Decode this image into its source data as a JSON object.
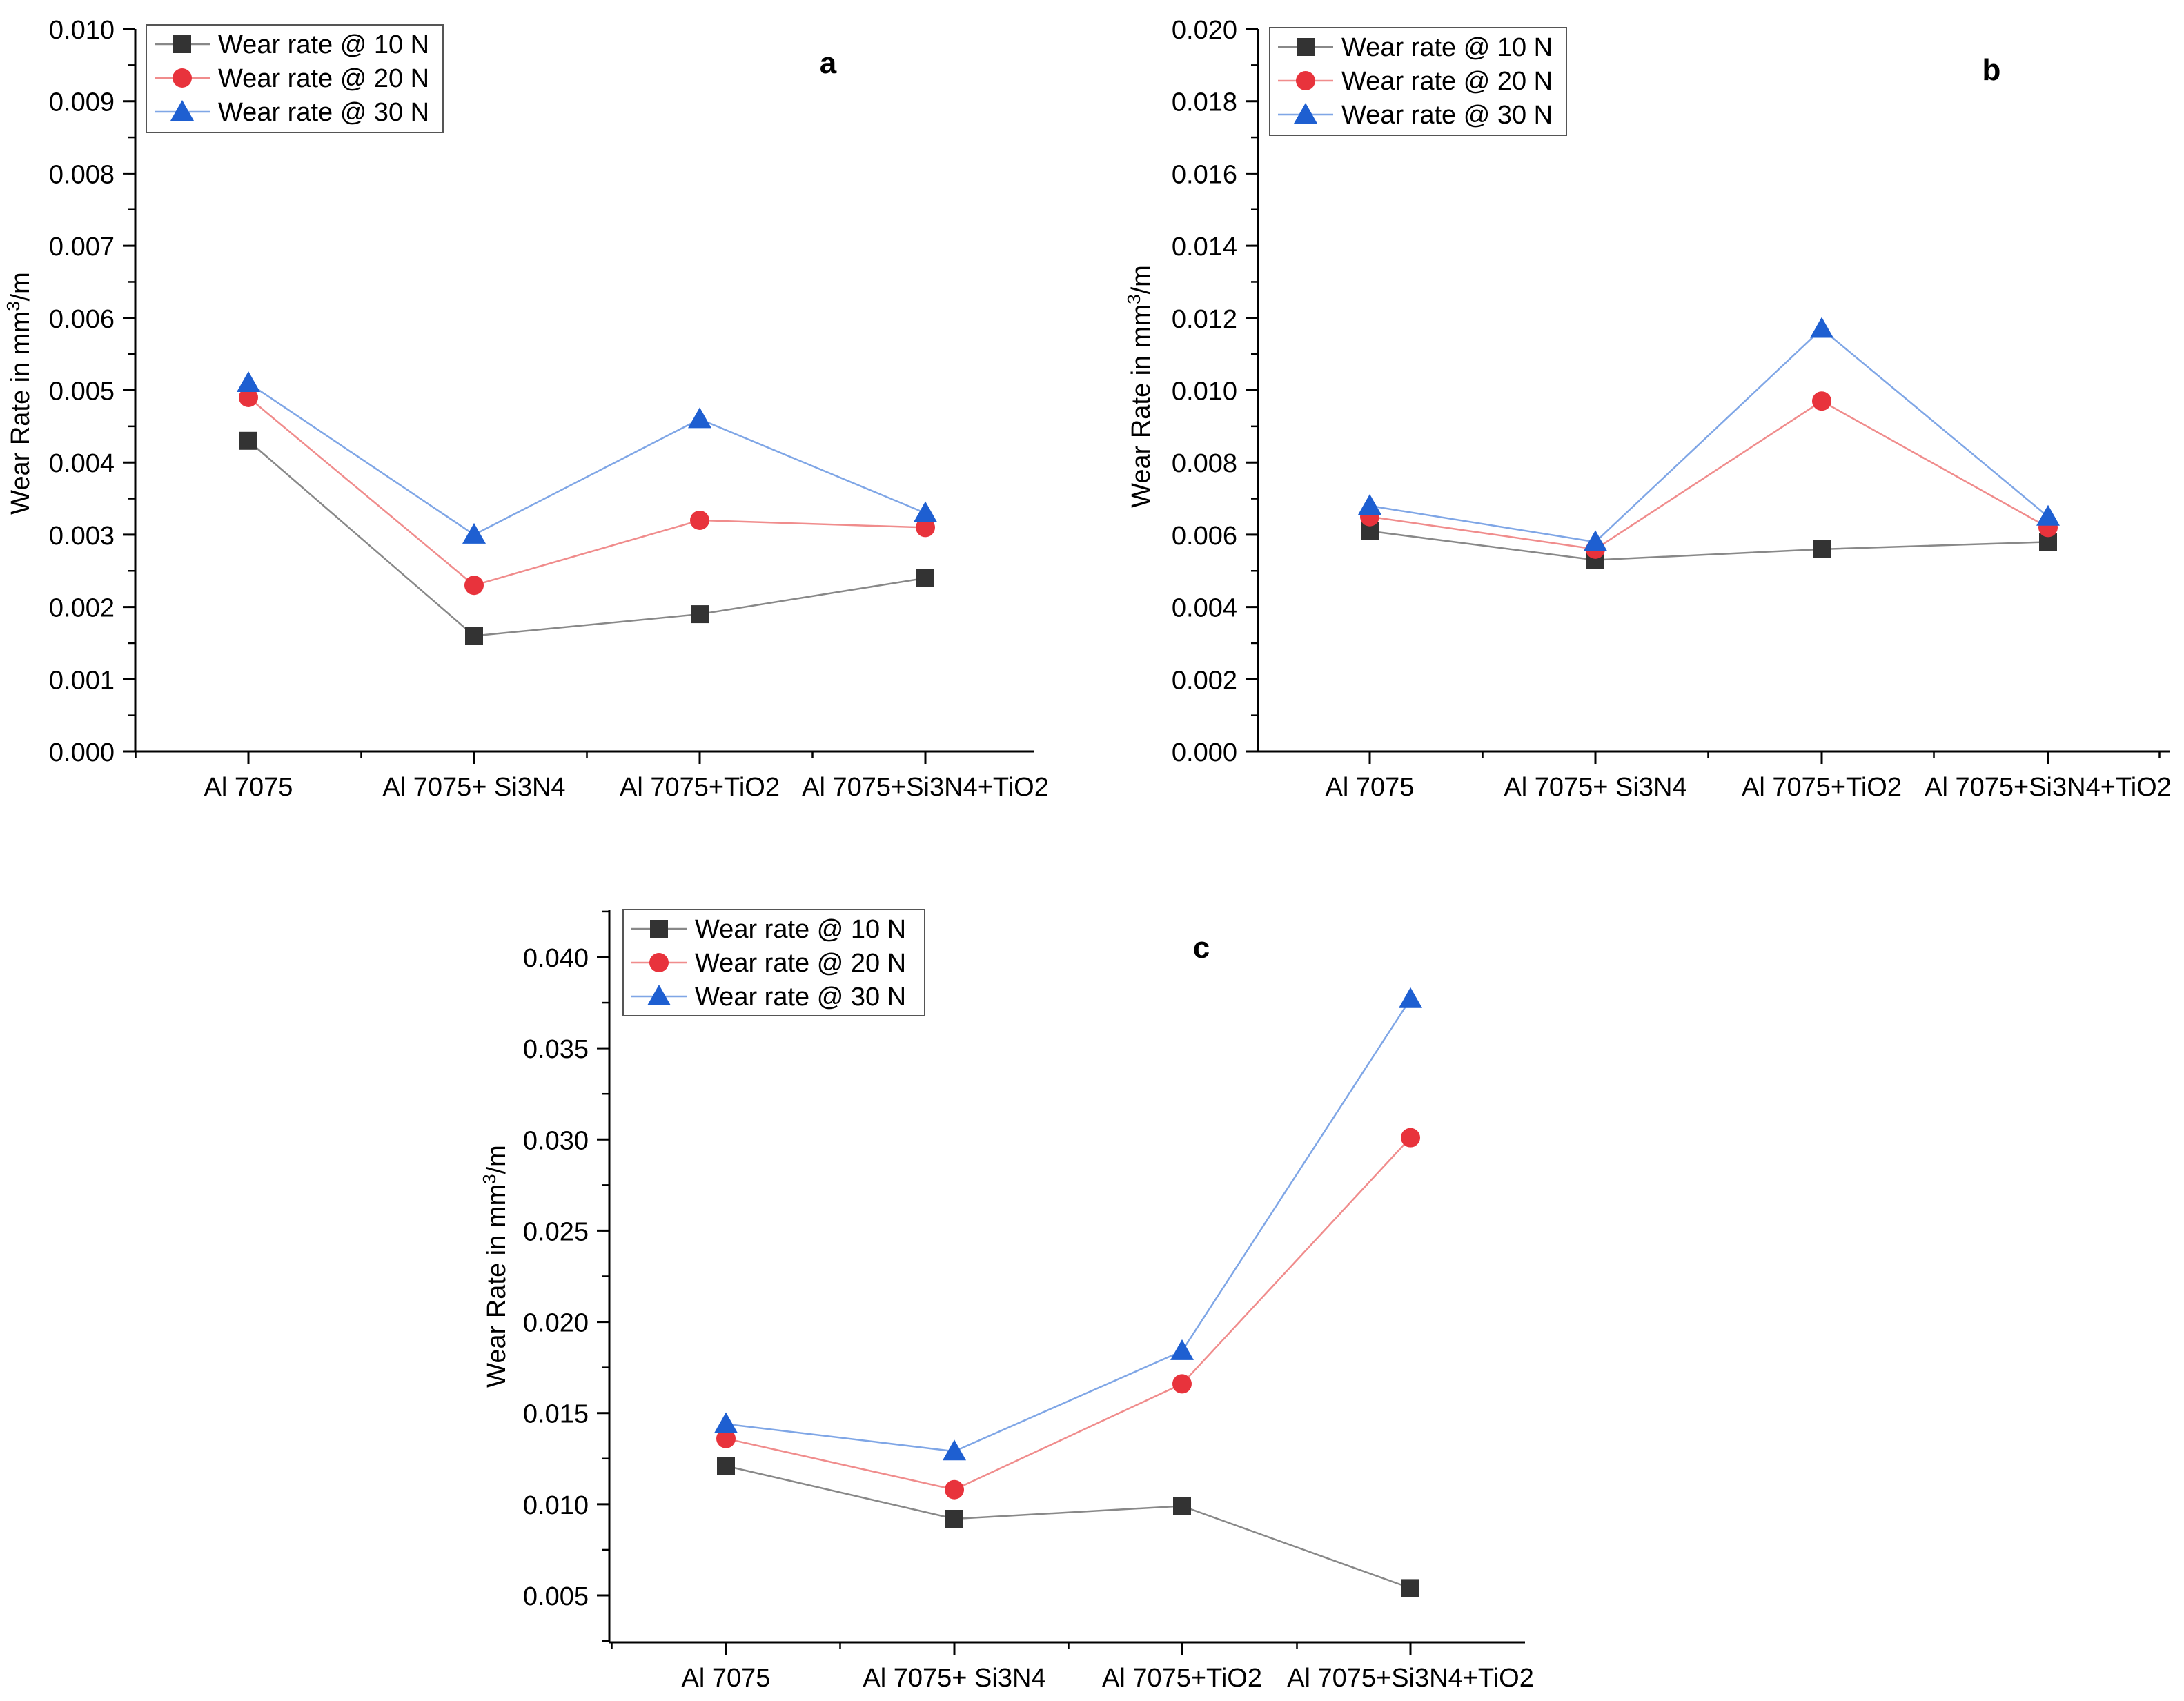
{
  "chart_data": [
    {
      "type": "line",
      "panel_label": "a",
      "categories": [
        "Al 7075",
        "Al 7075+ Si3N4",
        "Al 7075+TiO2",
        "Al 7075+Si3N4+TiO2"
      ],
      "ylabel": "Wear Rate in mm",
      "ylabel_sup": "3",
      "ylabel_tail": "/m",
      "ylim": [
        0,
        0.01
      ],
      "yticks": [
        "0.000",
        "0.001",
        "0.002",
        "0.003",
        "0.004",
        "0.005",
        "0.006",
        "0.007",
        "0.008",
        "0.009",
        "0.010"
      ],
      "legend_position": "top-left",
      "series": [
        {
          "name": "Wear rate @ 10 N",
          "marker": "square",
          "color": "#333333",
          "line_color": "#888888",
          "values": [
            0.0043,
            0.0016,
            0.0019,
            0.0024
          ]
        },
        {
          "name": "Wear rate @ 20 N",
          "marker": "circle",
          "color": "#e8333c",
          "line_color": "#f08c8c",
          "values": [
            0.0049,
            0.0023,
            0.0032,
            0.0031
          ]
        },
        {
          "name": "Wear rate @ 30 N",
          "marker": "triangle",
          "color": "#1e5fd1",
          "line_color": "#7fa6e6",
          "values": [
            0.0051,
            0.003,
            0.0046,
            0.0033
          ]
        }
      ]
    },
    {
      "type": "line",
      "panel_label": "b",
      "categories": [
        "Al 7075",
        "Al 7075+ Si3N4",
        "Al 7075+TiO2",
        "Al 7075+Si3N4+TiO2"
      ],
      "ylabel": "Wear Rate in mm",
      "ylabel_sup": "3",
      "ylabel_tail": "/m",
      "ylim": [
        0,
        0.02
      ],
      "yticks": [
        "0.000",
        "0.002",
        "0.004",
        "0.006",
        "0.008",
        "0.010",
        "0.012",
        "0.014",
        "0.016",
        "0.018",
        "0.020"
      ],
      "legend_position": "top-left",
      "series": [
        {
          "name": "Wear rate @ 10 N",
          "marker": "square",
          "color": "#333333",
          "line_color": "#888888",
          "values": [
            0.0061,
            0.0053,
            0.0056,
            0.0058
          ]
        },
        {
          "name": "Wear rate @ 20 N",
          "marker": "circle",
          "color": "#e8333c",
          "line_color": "#f08c8c",
          "values": [
            0.0065,
            0.0056,
            0.0097,
            0.0062
          ]
        },
        {
          "name": "Wear rate @ 30 N",
          "marker": "triangle",
          "color": "#1e5fd1",
          "line_color": "#7fa6e6",
          "values": [
            0.0068,
            0.0058,
            0.0117,
            0.0065
          ]
        }
      ]
    },
    {
      "type": "line",
      "panel_label": "c",
      "categories": [
        "Al 7075",
        "Al 7075+ Si3N4",
        "Al 7075+TiO2",
        "Al 7075+Si3N4+TiO2"
      ],
      "ylabel": "Wear Rate in mm",
      "ylabel_sup": "3",
      "ylabel_tail": "/m",
      "ylim": [
        0.0024,
        0.0425
      ],
      "yticks": [
        "0.005",
        "0.010",
        "0.015",
        "0.020",
        "0.025",
        "0.030",
        "0.035",
        "0.040"
      ],
      "legend_position": "top-left",
      "series": [
        {
          "name": "Wear rate @ 10 N",
          "marker": "square",
          "color": "#333333",
          "line_color": "#888888",
          "values": [
            0.0121,
            0.0092,
            0.0099,
            0.0054
          ]
        },
        {
          "name": "Wear rate @ 20 N",
          "marker": "circle",
          "color": "#e8333c",
          "line_color": "#f08c8c",
          "values": [
            0.0136,
            0.0108,
            0.0166,
            0.0301
          ]
        },
        {
          "name": "Wear rate @ 30 N",
          "marker": "triangle",
          "color": "#1e5fd1",
          "line_color": "#7fa6e6",
          "values": [
            0.0144,
            0.0129,
            0.0184,
            0.0377
          ]
        }
      ]
    }
  ]
}
